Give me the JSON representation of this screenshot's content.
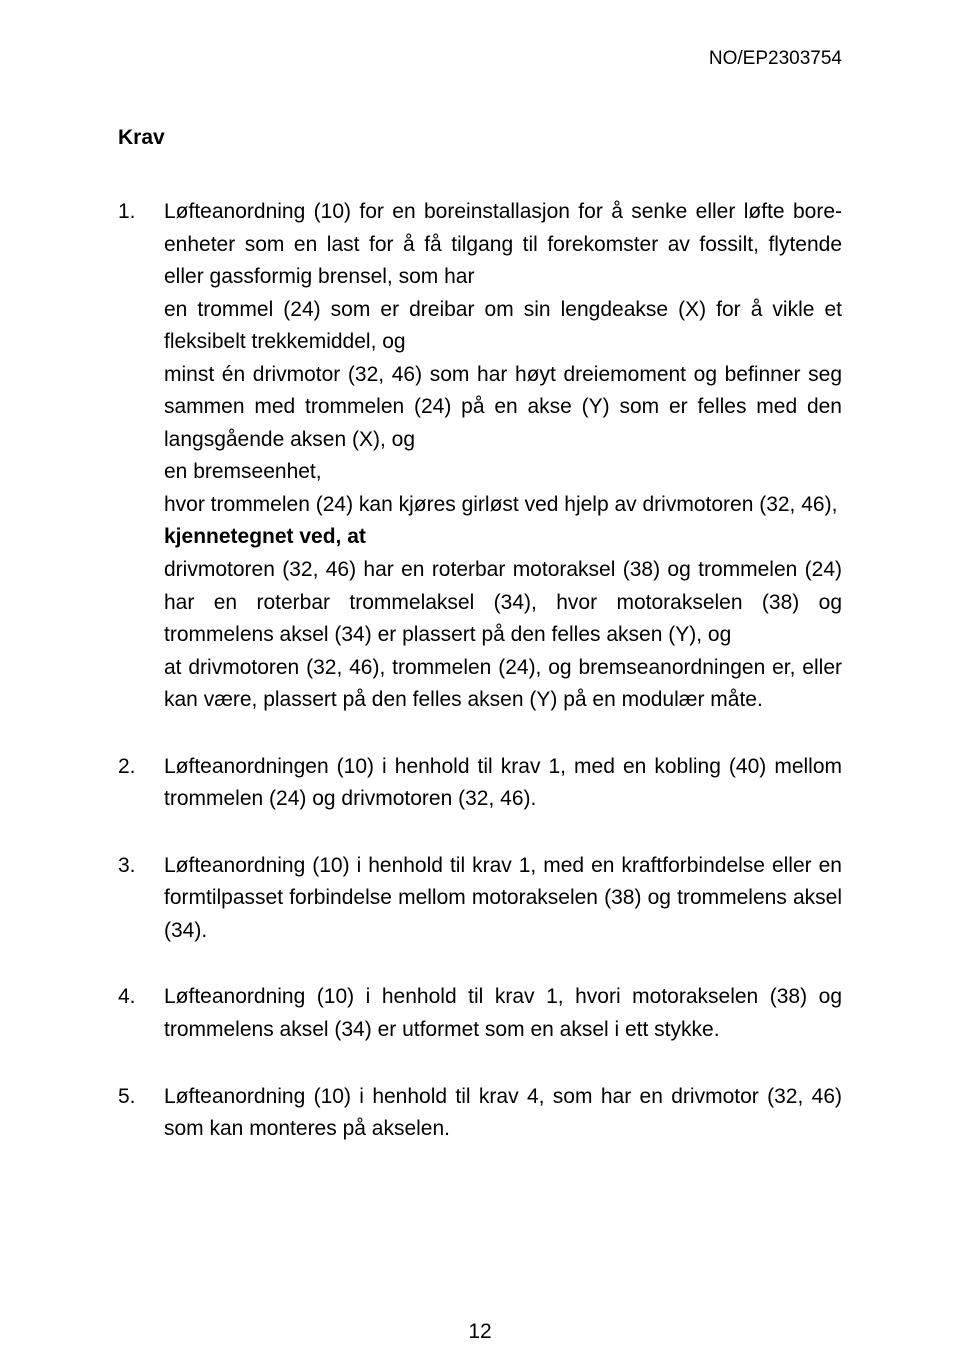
{
  "doc_id": "NO/EP2303754",
  "section_title": "Krav",
  "page_number": "12",
  "claims": [
    {
      "num": "1.",
      "paragraphs": [
        {
          "text": "Løfteanordning (10) for en boreinstallasjon for å senke eller løfte bore-enheter som en last for å få tilgang til forekomster av fossilt, flytende eller gassformig brensel, som har"
        },
        {
          "text": "en trommel (24) som er dreibar om sin lengdeakse (X) for å vikle et fleksibelt trekkemiddel, og"
        },
        {
          "text": "minst én drivmotor (32, 46) som har høyt dreiemoment og befinner seg sammen med trommelen (24) på en akse (Y) som er felles med den langsgående aksen (X), og"
        },
        {
          "text": "en bremseenhet,"
        },
        {
          "text": "hvor trommelen (24) kan kjøres girløst ved hjelp av drivmotoren (32, 46),"
        },
        {
          "text": "kjennetegnet ved, at",
          "bold": true
        },
        {
          "text": "drivmotoren (32, 46) har en roterbar motoraksel (38) og trommelen (24) har en roterbar trommelaksel (34), hvor motorakselen (38) og trommelens aksel (34) er plassert på den felles aksen (Y), og"
        },
        {
          "text": "at drivmotoren (32, 46), trommelen (24), og bremseanordningen er, eller kan være, plassert på den felles aksen (Y) på en modulær måte."
        }
      ]
    },
    {
      "num": "2.",
      "paragraphs": [
        {
          "text": "Løfteanordningen (10) i henhold til krav 1, med en kobling (40) mellom trommelen (24) og drivmotoren (32, 46)."
        }
      ]
    },
    {
      "num": "3.",
      "paragraphs": [
        {
          "text": "Løfteanordning (10) i henhold til krav 1, med en kraftforbindelse eller en formtilpasset forbindelse mellom motorakselen (38) og trommelens aksel (34)."
        }
      ]
    },
    {
      "num": "4.",
      "paragraphs": [
        {
          "text": "Løfteanordning (10) i henhold til krav 1, hvori motorakselen (38) og trommelens aksel (34) er utformet som en aksel i ett stykke."
        }
      ]
    },
    {
      "num": "5.",
      "paragraphs": [
        {
          "text": "Løfteanordning (10) i henhold til krav 4, som har en drivmotor (32, 46) som kan monteres på akselen."
        }
      ]
    }
  ]
}
